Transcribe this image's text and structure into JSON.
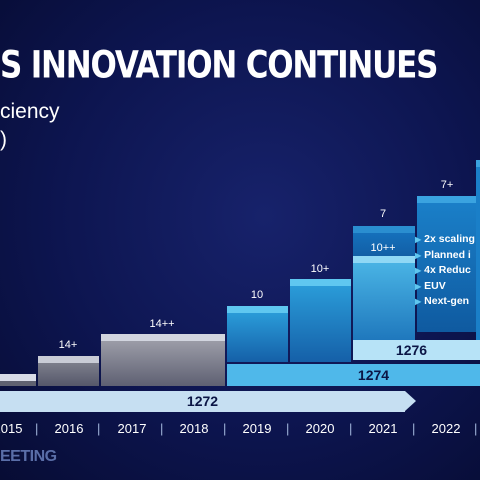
{
  "slide": {
    "title": "S INNOVATION CONTINUES",
    "subtitle_line1": "ciency",
    "subtitle_line2": ")",
    "footer": "EETING"
  },
  "nodes": [
    {
      "label": "14+"
    },
    {
      "label": "14++"
    },
    {
      "label": "10"
    },
    {
      "label": "10+"
    },
    {
      "label": "10++"
    },
    {
      "label": "7"
    },
    {
      "label": "7+"
    }
  ],
  "bars": [
    {
      "label": "1272"
    },
    {
      "label": "1274"
    },
    {
      "label": "1276"
    }
  ],
  "bullets": [
    "2x scaling",
    "Planned i",
    "4x Reduc",
    "EUV",
    "Next-gen"
  ],
  "timeline": {
    "years": [
      "2015",
      "2016",
      "2017",
      "2018",
      "2019",
      "2020",
      "2021",
      "2022"
    ],
    "separator": "|"
  },
  "colors": {
    "background": "#0d1550",
    "gray_step": "#8e8f9a",
    "light_blue": "#5fc7f0",
    "mid_blue": "#1f86c8",
    "deep_blue": "#1560a8",
    "bar_1272": "#c6dff2",
    "bar_1274": "#4fb8ea",
    "bar_1276": "#b7e3f7"
  }
}
